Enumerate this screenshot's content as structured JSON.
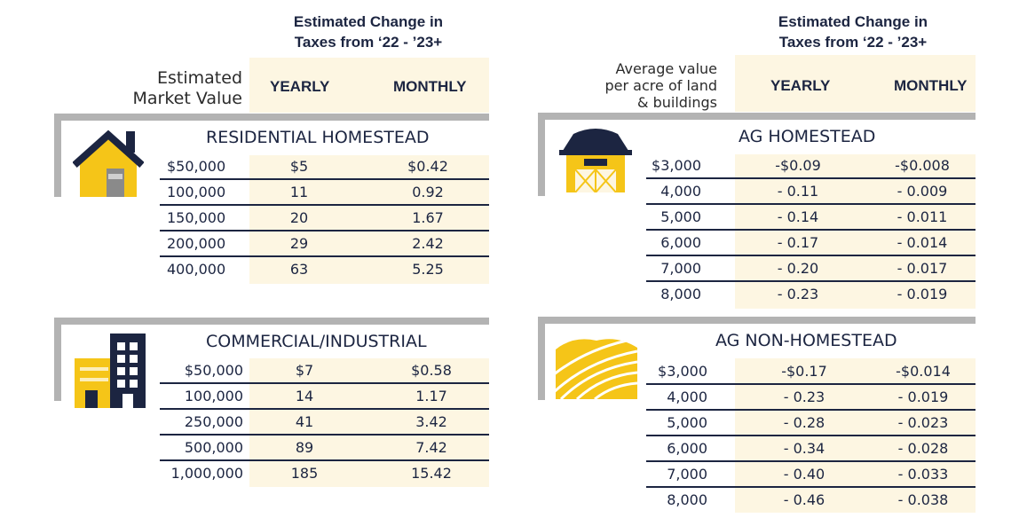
{
  "colors": {
    "navy": "#1c2541",
    "gold": "#f5c518",
    "cream": "#fdf6e2",
    "gray": "#b3b3b3"
  },
  "left": {
    "header": {
      "title_line1": "Estimated Change in",
      "title_line2": "Taxes from ‘22 - ’23+",
      "label_line1": "Estimated",
      "label_line2": "Market Value",
      "yearly": "YEARLY",
      "monthly": "MONTHLY"
    },
    "sections": [
      {
        "title": "RESIDENTIAL HOMESTEAD",
        "icon": "house-icon",
        "rows": [
          {
            "value": "$50,000",
            "yearly": "$5",
            "monthly": "$0.42"
          },
          {
            "value": "100,000",
            "yearly": "11",
            "monthly": "0.92"
          },
          {
            "value": "150,000",
            "yearly": "20",
            "monthly": "1.67"
          },
          {
            "value": "200,000",
            "yearly": "29",
            "monthly": "2.42"
          },
          {
            "value": "400,000",
            "yearly": "63",
            "monthly": "5.25"
          }
        ]
      },
      {
        "title": "COMMERCIAL/INDUSTRIAL",
        "icon": "buildings-icon",
        "rows": [
          {
            "value": "$50,000",
            "yearly": "$7",
            "monthly": "$0.58"
          },
          {
            "value": "100,000",
            "yearly": "14",
            "monthly": "1.17"
          },
          {
            "value": "250,000",
            "yearly": "41",
            "monthly": "3.42"
          },
          {
            "value": "500,000",
            "yearly": "89",
            "monthly": "7.42"
          },
          {
            "value": "1,000,000",
            "yearly": "185",
            "monthly": "15.42"
          }
        ]
      }
    ]
  },
  "right": {
    "header": {
      "title_line1": "Estimated Change in",
      "title_line2": "Taxes from ‘22 - ’23+",
      "label_line1": "Average value",
      "label_line2": "per acre of land",
      "label_line3": "& buildings",
      "yearly": "YEARLY",
      "monthly": "MONTHLY"
    },
    "sections": [
      {
        "title": "AG HOMESTEAD",
        "icon": "barn-icon",
        "rows": [
          {
            "value": "$3,000",
            "yearly": "-$0.09",
            "monthly": "-$0.008"
          },
          {
            "value": "4,000",
            "yearly": "- 0.11",
            "monthly": "- 0.009"
          },
          {
            "value": "5,000",
            "yearly": "- 0.14",
            "monthly": "- 0.011"
          },
          {
            "value": "6,000",
            "yearly": "- 0.17",
            "monthly": "- 0.014"
          },
          {
            "value": "7,000",
            "yearly": "- 0.20",
            "monthly": "- 0.017"
          },
          {
            "value": "8,000",
            "yearly": "- 0.23",
            "monthly": "- 0.019"
          }
        ]
      },
      {
        "title": "AG NON-HOMESTEAD",
        "icon": "field-icon",
        "rows": [
          {
            "value": "$3,000",
            "yearly": "-$0.17",
            "monthly": "-$0.014"
          },
          {
            "value": "4,000",
            "yearly": "- 0.23",
            "monthly": "- 0.019"
          },
          {
            "value": "5,000",
            "yearly": "- 0.28",
            "monthly": "- 0.023"
          },
          {
            "value": "6,000",
            "yearly": "- 0.34",
            "monthly": "- 0.028"
          },
          {
            "value": "7,000",
            "yearly": "- 0.40",
            "monthly": "- 0.033"
          },
          {
            "value": "8,000",
            "yearly": "- 0.46",
            "monthly": "- 0.038"
          }
        ]
      }
    ]
  }
}
